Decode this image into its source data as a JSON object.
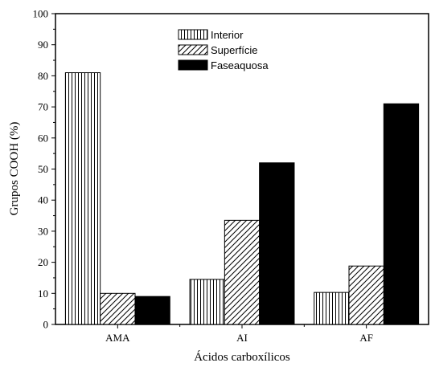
{
  "chart_data": {
    "type": "bar",
    "title": "",
    "xlabel": "Ácidos carboxílicos",
    "ylabel": "Grupos COOH (%)",
    "categories": [
      "AMA",
      "AI",
      "AF"
    ],
    "ylim": [
      0,
      100
    ],
    "yticks": [
      0,
      10,
      20,
      30,
      40,
      50,
      60,
      70,
      80,
      90,
      100
    ],
    "grid": false,
    "legend_position": "top-center",
    "series": [
      {
        "name": "Interior",
        "pattern": "vertical-lines",
        "color": "#000000",
        "values": [
          81,
          14.5,
          10.3
        ]
      },
      {
        "name": "Superfície",
        "pattern": "diagonal-lines",
        "color": "#000000",
        "values": [
          10,
          33.5,
          18.8
        ]
      },
      {
        "name": "Faseaquosa",
        "pattern": "solid",
        "color": "#000000",
        "values": [
          9,
          52,
          71
        ]
      }
    ]
  }
}
